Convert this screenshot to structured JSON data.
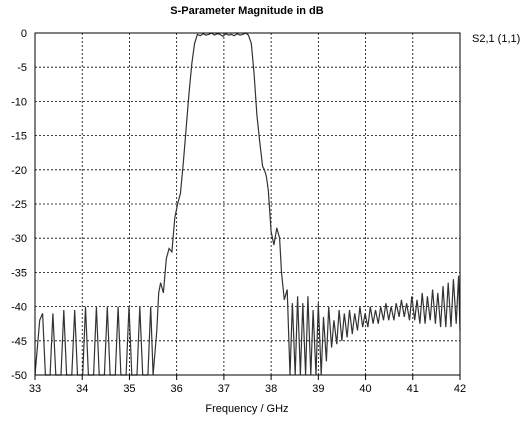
{
  "chart_data": {
    "type": "line",
    "title": "S-Parameter Magnitude in dB",
    "xlabel": "Frequency / GHz",
    "ylabel": "",
    "xlim": [
      33,
      42
    ],
    "ylim": [
      -50,
      0
    ],
    "x_ticks": [
      "33",
      "34",
      "35",
      "36",
      "37",
      "38",
      "39",
      "40",
      "41",
      "42"
    ],
    "y_ticks": [
      "0",
      "-5",
      "-10",
      "-15",
      "-20",
      "-25",
      "-30",
      "-35",
      "-40",
      "-45",
      "-50"
    ],
    "grid": true,
    "legend": "top-right",
    "series": [
      {
        "name": "S2,1 (1,1)",
        "x": [
          33.0,
          33.1,
          33.16,
          33.22,
          33.32,
          33.38,
          33.44,
          33.55,
          33.61,
          33.67,
          33.78,
          33.84,
          33.9,
          34.01,
          34.07,
          34.13,
          34.24,
          34.3,
          34.36,
          34.47,
          34.53,
          34.59,
          34.7,
          34.76,
          34.82,
          34.93,
          34.99,
          35.05,
          35.16,
          35.22,
          35.28,
          35.39,
          35.45,
          35.5,
          35.58,
          35.62,
          35.66,
          35.72,
          35.78,
          35.84,
          35.9,
          35.96,
          36.02,
          36.08,
          36.14,
          36.2,
          36.26,
          36.32,
          36.38,
          36.44,
          36.5,
          36.56,
          36.62,
          36.68,
          36.74,
          36.8,
          36.86,
          36.92,
          36.98,
          37.04,
          37.1,
          37.16,
          37.22,
          37.28,
          37.34,
          37.4,
          37.46,
          37.52,
          37.58,
          37.64,
          37.7,
          37.76,
          37.82,
          37.86,
          37.9,
          37.94,
          38.0,
          38.06,
          38.12,
          38.18,
          38.22,
          38.28,
          38.34,
          38.4,
          38.45,
          38.51,
          38.56,
          38.62,
          38.67,
          38.73,
          38.78,
          38.84,
          38.89,
          38.95,
          39.0,
          39.06,
          39.11,
          39.17,
          39.22,
          39.28,
          39.33,
          39.39,
          39.44,
          39.5,
          39.55,
          39.61,
          39.66,
          39.72,
          39.77,
          39.83,
          39.88,
          39.94,
          39.99,
          40.05,
          40.1,
          40.16,
          40.21,
          40.27,
          40.32,
          40.38,
          40.43,
          40.49,
          40.54,
          40.6,
          40.65,
          40.71,
          40.76,
          40.82,
          40.87,
          40.93,
          40.98,
          41.04,
          41.09,
          41.15,
          41.2,
          41.26,
          41.31,
          41.37,
          41.42,
          41.48,
          41.53,
          41.59,
          41.64,
          41.7,
          41.75,
          41.81,
          41.86,
          41.92,
          41.97,
          42.0
        ],
        "y": [
          -50,
          -42,
          -41,
          -50,
          -50,
          -41,
          -50,
          -50,
          -40.5,
          -50,
          -50,
          -40.5,
          -50,
          -50,
          -40,
          -50,
          -50,
          -40,
          -50,
          -50,
          -40,
          -50,
          -50,
          -40,
          -50,
          -50,
          -40,
          -50,
          -50,
          -40,
          -50,
          -50,
          -40,
          -50,
          -43.5,
          -38,
          -36.5,
          -38,
          -33,
          -31.5,
          -32,
          -27,
          -25,
          -23.5,
          -19,
          -14,
          -9,
          -4.5,
          -1.5,
          -0.2,
          -0.4,
          -0.1,
          -0.3,
          -0.2,
          0,
          -0.3,
          -0.1,
          -0.2,
          -0.5,
          -0.1,
          -0.3,
          -0.2,
          -0.4,
          -0.1,
          -0.3,
          -0.2,
          0,
          -0.3,
          -1.5,
          -6,
          -12,
          -16,
          -19.5,
          -20,
          -21,
          -23,
          -29,
          -31,
          -28.5,
          -30,
          -35,
          -39,
          -37.5,
          -50,
          -39.5,
          -50,
          -38.5,
          -50,
          -39.5,
          -50,
          -38.5,
          -50,
          -40.5,
          -50,
          -39.5,
          -50,
          -41.5,
          -48,
          -40,
          -46,
          -42,
          -45.5,
          -40.5,
          -45,
          -41,
          -44.5,
          -40.5,
          -44,
          -41,
          -43.5,
          -40,
          -43,
          -41,
          -43,
          -40,
          -42.5,
          -40.5,
          -42.5,
          -40,
          -42,
          -39.5,
          -42,
          -40,
          -42,
          -39.5,
          -41.5,
          -39,
          -41.5,
          -39.5,
          -42,
          -38.5,
          -42,
          -39,
          -42.5,
          -38,
          -42.5,
          -38.5,
          -42,
          -37.5,
          -42.5,
          -38,
          -43,
          -37,
          -43,
          -36.5,
          -43,
          -36,
          -42.5,
          -35.5,
          -43.5
        ]
      }
    ]
  }
}
